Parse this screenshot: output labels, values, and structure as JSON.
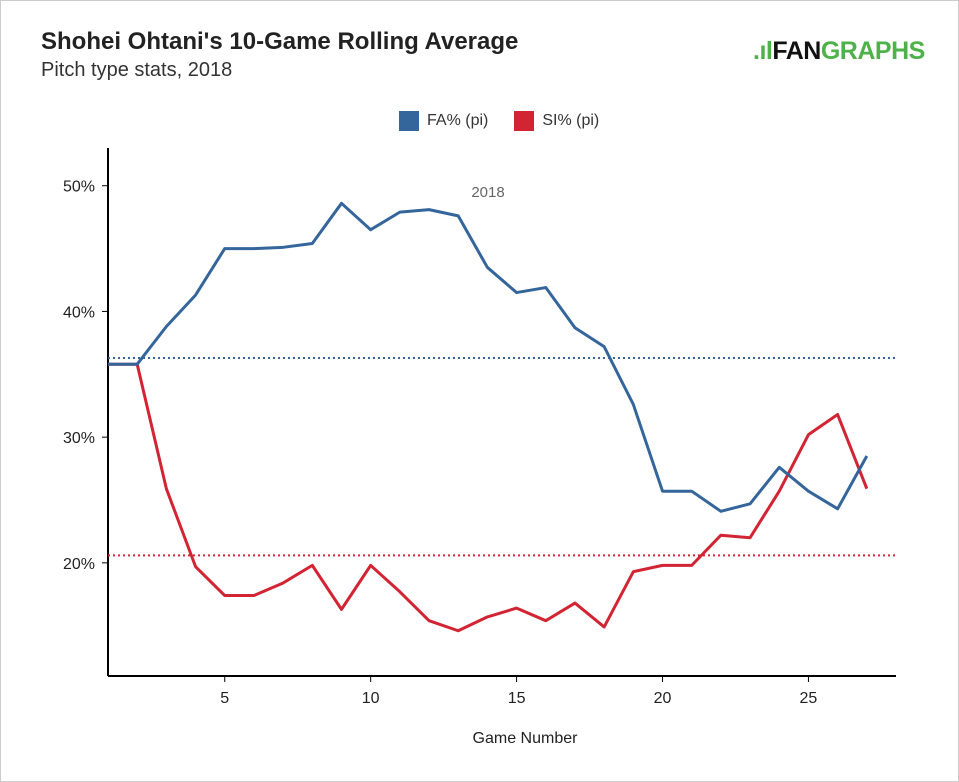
{
  "title": "Shohei Ohtani's 10-Game Rolling Average",
  "subtitle": "Pitch type stats, 2018",
  "logo": {
    "text_a": "FAN",
    "text_b": "GRAPHS",
    "brand_color": "#4eb14a"
  },
  "chart_data": {
    "type": "line",
    "title": "Shohei Ohtani's 10-Game Rolling Average",
    "subtitle": "Pitch type stats, 2018",
    "xlabel": "Game Number",
    "ylabel": "",
    "annotation": "2018",
    "xlim": [
      1,
      28
    ],
    "ylim": [
      11,
      53
    ],
    "xticks": [
      5,
      10,
      15,
      20,
      25
    ],
    "yticks": [
      20,
      30,
      40,
      50
    ],
    "ytick_labels": [
      "20%",
      "30%",
      "40%",
      "50%"
    ],
    "grid": false,
    "legend_position": "top",
    "x": [
      1,
      2,
      3,
      4,
      5,
      6,
      7,
      8,
      9,
      10,
      11,
      12,
      13,
      14,
      15,
      16,
      17,
      18,
      19,
      20,
      21,
      22,
      23,
      24,
      25,
      26,
      27
    ],
    "series": [
      {
        "name": "FA% (pi)",
        "color": "#34659b",
        "average": 36.3,
        "values": [
          35.8,
          35.8,
          38.8,
          41.3,
          45.0,
          45.0,
          45.1,
          45.4,
          48.6,
          46.5,
          47.9,
          48.1,
          47.6,
          43.5,
          41.5,
          41.9,
          38.7,
          37.2,
          32.6,
          25.7,
          25.7,
          24.1,
          24.7,
          27.6,
          25.7,
          24.3,
          28.5
        ]
      },
      {
        "name": "SI% (pi)",
        "color": "#d22433",
        "average": 20.6,
        "values": [
          35.8,
          35.8,
          25.9,
          19.7,
          17.4,
          17.4,
          18.4,
          19.8,
          16.3,
          19.8,
          17.7,
          15.4,
          14.6,
          15.7,
          16.4,
          15.4,
          16.8,
          14.9,
          19.3,
          19.8,
          19.8,
          22.2,
          22.0,
          25.7,
          30.2,
          31.8,
          25.9
        ]
      }
    ]
  }
}
